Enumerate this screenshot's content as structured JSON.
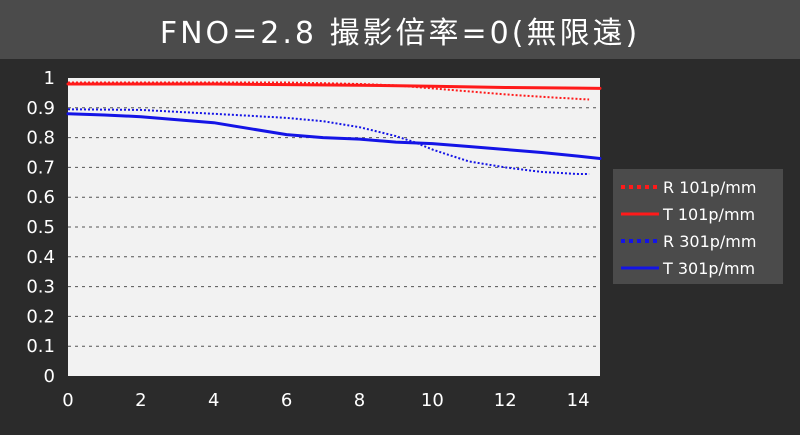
{
  "header": {
    "title": "FNO=2.8 撮影倍率=0(無限遠)"
  },
  "colors": {
    "background": "#2b2b2b",
    "title_bar": "#4b4b4b",
    "plot_area": "#f2f2f2",
    "red": "#ff1a1a",
    "blue": "#1414e6",
    "legend_bg": "#4b4b4b"
  },
  "chart_data": {
    "type": "line",
    "title": "FNO=2.8 撮影倍率=0(無限遠)",
    "xlabel": "",
    "ylabel": "",
    "xlim": [
      0,
      14.6
    ],
    "ylim": [
      0,
      1
    ],
    "x_ticks": [
      "0",
      "2",
      "4",
      "6",
      "8",
      "10",
      "12",
      "14"
    ],
    "y_ticks": [
      "0",
      "0.1",
      "0.2",
      "0.3",
      "0.4",
      "0.5",
      "0.6",
      "0.7",
      "0.8",
      "0.9",
      "1"
    ],
    "grid": "horizontal dashed",
    "legend_position": "right",
    "series": [
      {
        "name": "R 101p/mm",
        "color": "#ff1a1a",
        "style": "dotted",
        "x": [
          0,
          2,
          4,
          6,
          8,
          9,
          10,
          11,
          12,
          13,
          14,
          14.3
        ],
        "y": [
          0.985,
          0.985,
          0.985,
          0.985,
          0.98,
          0.975,
          0.965,
          0.955,
          0.945,
          0.937,
          0.93,
          0.928
        ]
      },
      {
        "name": "T 101p/mm",
        "color": "#ff1a1a",
        "style": "solid",
        "x": [
          0,
          2,
          4,
          6,
          8,
          10,
          12,
          14,
          14.6
        ],
        "y": [
          0.98,
          0.98,
          0.98,
          0.978,
          0.976,
          0.972,
          0.968,
          0.966,
          0.965
        ]
      },
      {
        "name": "R 301p/mm",
        "color": "#1414e6",
        "style": "dotted",
        "x": [
          0,
          2,
          4,
          5,
          6,
          7,
          8,
          8.5,
          9,
          9.5,
          10,
          10.5,
          11,
          12,
          13,
          14,
          14.3
        ],
        "y": [
          0.895,
          0.893,
          0.88,
          0.873,
          0.866,
          0.855,
          0.835,
          0.82,
          0.805,
          0.785,
          0.76,
          0.74,
          0.72,
          0.7,
          0.685,
          0.678,
          0.678
        ]
      },
      {
        "name": "T 301p/mm",
        "color": "#1414e6",
        "style": "solid",
        "x": [
          0,
          1,
          2,
          3,
          4,
          5,
          6,
          7,
          8,
          9,
          10,
          11,
          12,
          13,
          14,
          14.6
        ],
        "y": [
          0.88,
          0.876,
          0.87,
          0.86,
          0.85,
          0.83,
          0.81,
          0.8,
          0.795,
          0.785,
          0.78,
          0.77,
          0.76,
          0.75,
          0.738,
          0.73
        ]
      }
    ]
  }
}
